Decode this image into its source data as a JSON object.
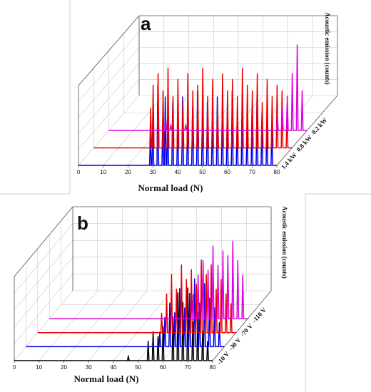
{
  "chart_data": [
    {
      "type": "line",
      "panel_label": "a",
      "xlabel": "Normal load (N)",
      "zlabel": "Acoustic emission (counts)",
      "x_ticks": [
        "0",
        "10",
        "20",
        "30",
        "40",
        "50",
        "60",
        "70",
        "80"
      ],
      "xlim": [
        0,
        80
      ],
      "depth_ticks": [
        "1.4 kW",
        "0.8 kW",
        "0.2 kW"
      ],
      "series": [
        {
          "name": "1.4 kW",
          "color": "#0000ee",
          "onset": 29,
          "x": [
            29,
            30,
            32,
            34,
            35,
            36,
            38,
            40,
            42,
            44,
            46,
            48,
            50,
            52,
            54,
            56,
            58,
            60,
            62,
            64,
            66,
            68,
            70,
            72,
            74,
            76,
            78
          ],
          "y": [
            5,
            9,
            14,
            8,
            12,
            9,
            11,
            7,
            12,
            8,
            10,
            13,
            9,
            11,
            8,
            12,
            10,
            9,
            13,
            8,
            11,
            7,
            10,
            12,
            9,
            8,
            6
          ]
        },
        {
          "name": "0.8 kW",
          "color": "#ee0000",
          "onset": 23,
          "x": [
            23,
            24,
            26,
            28,
            30,
            32,
            34,
            36,
            38,
            40,
            42,
            44,
            46,
            48,
            50,
            52,
            54,
            56,
            58,
            60,
            62,
            64,
            66,
            68,
            70,
            72,
            74,
            76,
            78
          ],
          "y": [
            7,
            11,
            13,
            10,
            14,
            9,
            12,
            8,
            13,
            10,
            11,
            14,
            9,
            12,
            8,
            13,
            10,
            12,
            9,
            14,
            11,
            10,
            13,
            8,
            12,
            9,
            11,
            10,
            7
          ]
        },
        {
          "name": "0.2 kW",
          "color": "#dd00dd",
          "onset": 23,
          "x": [
            23,
            25,
            28,
            31,
            34,
            38,
            44,
            50,
            56,
            62,
            68,
            70,
            72,
            74,
            76,
            78
          ],
          "y": [
            2,
            1,
            0,
            1,
            0,
            0,
            0,
            0,
            0,
            0,
            3,
            4,
            6,
            10,
            15,
            7
          ]
        }
      ]
    },
    {
      "type": "line",
      "panel_label": "b",
      "xlabel": "Normal load (N)",
      "zlabel": "Acoustic emission (counts)",
      "x_ticks": [
        "0",
        "10",
        "20",
        "30",
        "40",
        "50",
        "60",
        "70",
        "80"
      ],
      "xlim": [
        0,
        80
      ],
      "depth_ticks": [
        "-10 V",
        "-30 V",
        "-70 V",
        "-110 V"
      ],
      "series": [
        {
          "name": "-10 V",
          "color": "#000000",
          "onset": 54,
          "x": [
            46,
            54,
            56,
            58,
            60,
            64,
            66,
            68,
            70,
            72,
            74,
            76,
            78
          ],
          "y": [
            1,
            4,
            6,
            5,
            7,
            9,
            14,
            12,
            15,
            8,
            10,
            6,
            4
          ]
        },
        {
          "name": "-30 V",
          "color": "#0000ee",
          "onset": 54,
          "x": [
            54,
            56,
            58,
            60,
            62,
            64,
            66,
            68,
            70,
            72,
            74,
            76,
            78
          ],
          "y": [
            3,
            6,
            9,
            7,
            12,
            8,
            11,
            14,
            9,
            13,
            10,
            8,
            5
          ]
        },
        {
          "name": "-70 V",
          "color": "#ee0000",
          "onset": 50,
          "x": [
            50,
            52,
            54,
            56,
            58,
            60,
            62,
            64,
            66,
            68,
            70,
            72,
            74,
            76,
            78
          ],
          "y": [
            4,
            8,
            12,
            9,
            14,
            11,
            13,
            10,
            15,
            12,
            14,
            9,
            11,
            8,
            6
          ]
        },
        {
          "name": "-110 V",
          "color": "#dd00dd",
          "onset": 58,
          "x": [
            58,
            60,
            62,
            64,
            66,
            68,
            70,
            72,
            74,
            76,
            78
          ],
          "y": [
            5,
            9,
            12,
            10,
            15,
            11,
            14,
            13,
            16,
            12,
            9
          ]
        }
      ]
    }
  ]
}
